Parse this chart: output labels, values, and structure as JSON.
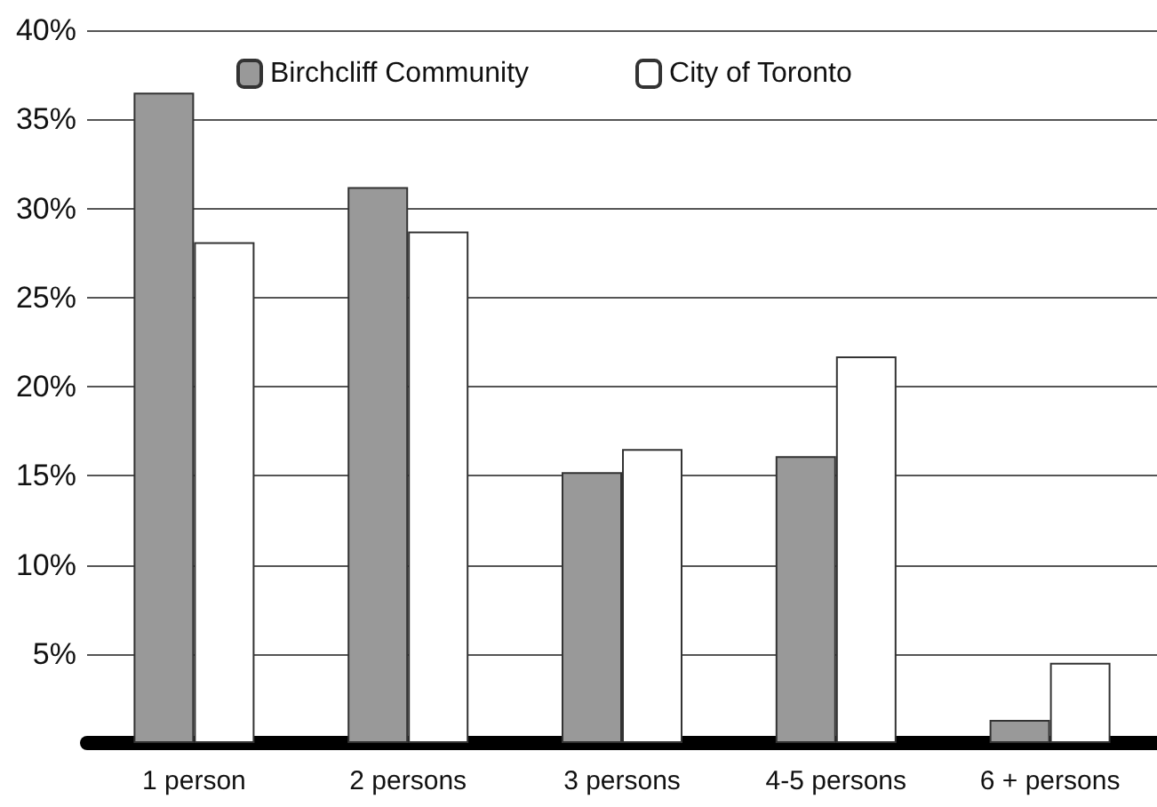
{
  "chart_data": {
    "type": "bar",
    "categories": [
      "1 person",
      "2 persons",
      "3 persons",
      "4-5 persons",
      "6 + persons"
    ],
    "series": [
      {
        "name": "Birchcliff Community",
        "color": "#999999",
        "values": [
          36.5,
          31.2,
          15.2,
          16.1,
          1.3
        ]
      },
      {
        "name": "City of Toronto",
        "color": "#ffffff",
        "values": [
          28.1,
          28.7,
          16.5,
          21.7,
          4.5
        ]
      }
    ],
    "ylim": [
      0,
      40
    ],
    "yticks": [
      {
        "value": 5,
        "label": "5%"
      },
      {
        "value": 10,
        "label": "10%"
      },
      {
        "value": 15,
        "label": "15%"
      },
      {
        "value": 20,
        "label": "20%"
      },
      {
        "value": 25,
        "label": "25%"
      },
      {
        "value": 30,
        "label": "30%"
      },
      {
        "value": 35,
        "label": "35%"
      },
      {
        "value": 40,
        "label": "40%"
      }
    ],
    "grid": "y",
    "legend": "top"
  }
}
